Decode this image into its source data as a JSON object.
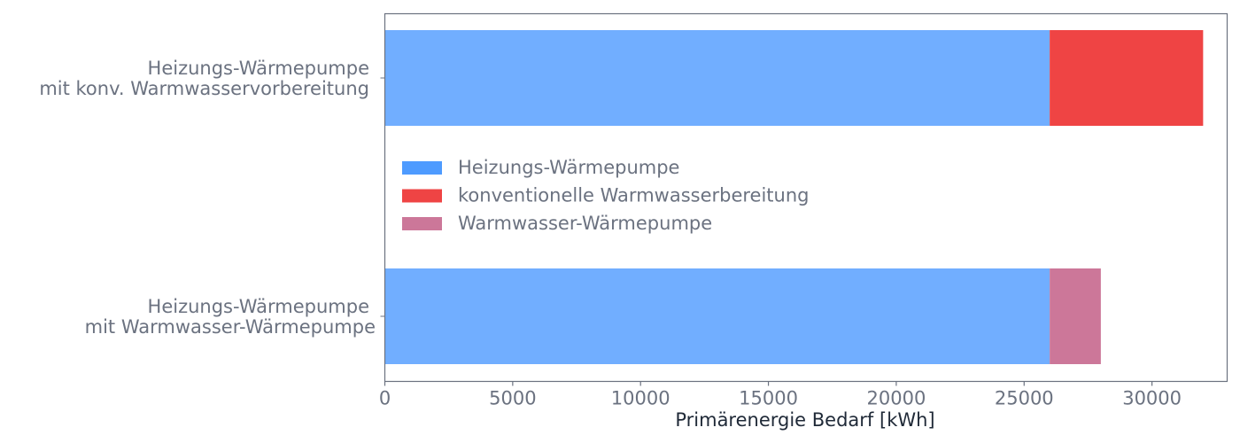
{
  "chart_data": {
    "type": "bar",
    "orientation": "horizontal",
    "stacked": true,
    "categories": [
      [
        "Heizungs-Wärmepumpe",
        "mit konv. Warmwasservorbereitung"
      ],
      [
        "Heizungs-Wärmepumpe",
        "mit Warmwasser-Wärmepumpe"
      ]
    ],
    "series": [
      {
        "name": "Heizungs-Wärmepumpe",
        "values": [
          26000,
          26000
        ],
        "color": "#4E9BFF",
        "bar_color": "#71AEFF"
      },
      {
        "name": "konventionelle Warmwasserbereitung",
        "values": [
          6000,
          0
        ],
        "color": "#EF4444"
      },
      {
        "name": "Warmwasser-Wärmepumpe",
        "values": [
          0,
          2000
        ],
        "color": "#CC7799"
      }
    ],
    "title": "",
    "xlabel": "Primärenergie Bedarf [kWh]",
    "ylabel": "",
    "xlim": [
      0,
      32940
    ],
    "xticks": [
      0,
      5000,
      10000,
      15000,
      20000,
      25000,
      30000
    ],
    "xtick_labels": [
      "0",
      "5000",
      "10000",
      "15000",
      "20000",
      "25000",
      "30000"
    ],
    "grid": false,
    "legend_position": "center-left"
  }
}
